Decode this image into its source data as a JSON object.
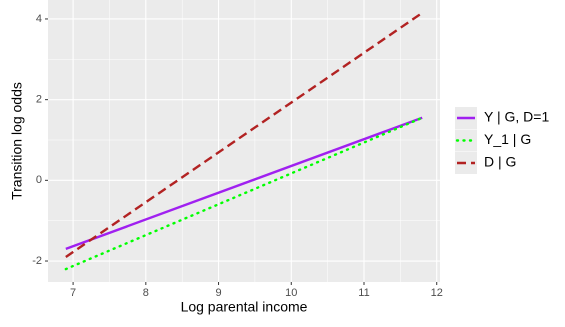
{
  "chart_data": {
    "type": "line",
    "x_label": "Log parental income",
    "y_label": "Transition log odds",
    "x": [
      6.9,
      11.8
    ],
    "series": [
      {
        "name": "Y | G, D=1",
        "color": "#a020f0",
        "linestyle": "solid",
        "values": [
          -1.7,
          1.55
        ]
      },
      {
        "name": "Y_1 | G",
        "color": "#00ff00",
        "linestyle": "dotted",
        "values": [
          -2.2,
          1.55
        ]
      },
      {
        "name": "D | G",
        "color": "#b22222",
        "linestyle": "dashed",
        "values": [
          -1.9,
          4.15
        ]
      }
    ],
    "xlim": [
      6.655,
      12.045
    ],
    "xticks": [
      7,
      8,
      9,
      10,
      11,
      12
    ],
    "ylim": [
      -2.52,
      4.47
    ],
    "yticks": [
      -2,
      0,
      2,
      4
    ],
    "grid": true,
    "legend": "right"
  }
}
